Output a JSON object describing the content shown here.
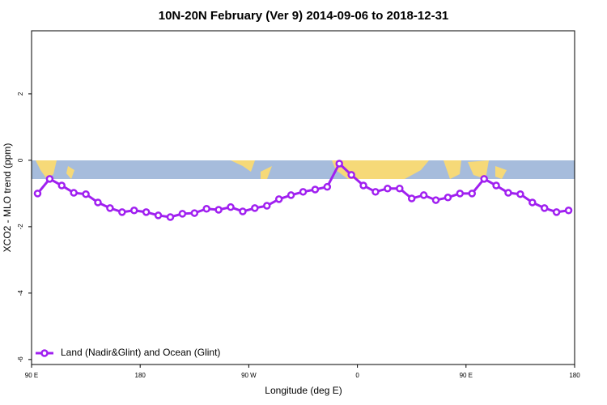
{
  "chart_data": {
    "type": "line",
    "title": "10N-20N February (Ver 9)   2014-09-06 to 2018-12-31",
    "x_label": "Longitude (deg E)",
    "y_label": "XCO2 - MLO trend (ppm)",
    "x": [
      95,
      105,
      115,
      125,
      135,
      145,
      155,
      165,
      175,
      185,
      195,
      205,
      215,
      225,
      235,
      245,
      255,
      265,
      275,
      285,
      295,
      305,
      315,
      325,
      335,
      345,
      355,
      365,
      375,
      385,
      395,
      405,
      415,
      425,
      435,
      445,
      455,
      465,
      475,
      485,
      495,
      505,
      515,
      525,
      535
    ],
    "series": [
      {
        "name": "Land (Nadir&Glint) and Ocean (Glint)",
        "color": "#a020f0",
        "values": [
          -1.0,
          -0.56,
          -0.76,
          -0.98,
          -1.02,
          -1.27,
          -1.44,
          -1.56,
          -1.51,
          -1.56,
          -1.66,
          -1.71,
          -1.61,
          -1.59,
          -1.46,
          -1.49,
          -1.41,
          -1.54,
          -1.44,
          -1.37,
          -1.17,
          -1.05,
          -0.95,
          -0.88,
          -0.8,
          -0.1,
          -0.44,
          -0.76,
          -0.95,
          -0.85,
          -0.85,
          -1.15,
          -1.05,
          -1.2,
          -1.12,
          -1.0,
          -1.0,
          -0.56,
          -0.76,
          -0.98,
          -1.02,
          -1.27,
          -1.44,
          -1.56,
          -1.51
        ]
      }
    ],
    "xlim": [
      90,
      540
    ],
    "xticks": [
      {
        "value": 90,
        "label": "90 E"
      },
      {
        "value": 180,
        "label": "180"
      },
      {
        "value": 270,
        "label": "90 W"
      },
      {
        "value": 360,
        "label": "0"
      },
      {
        "value": 450,
        "label": "90 E"
      },
      {
        "value": 540,
        "label": "180"
      }
    ],
    "ylim": [
      -6.15,
      3.9
    ],
    "yticks": [
      -6,
      -4,
      -2,
      0,
      2
    ],
    "legend": "bottom-left"
  }
}
